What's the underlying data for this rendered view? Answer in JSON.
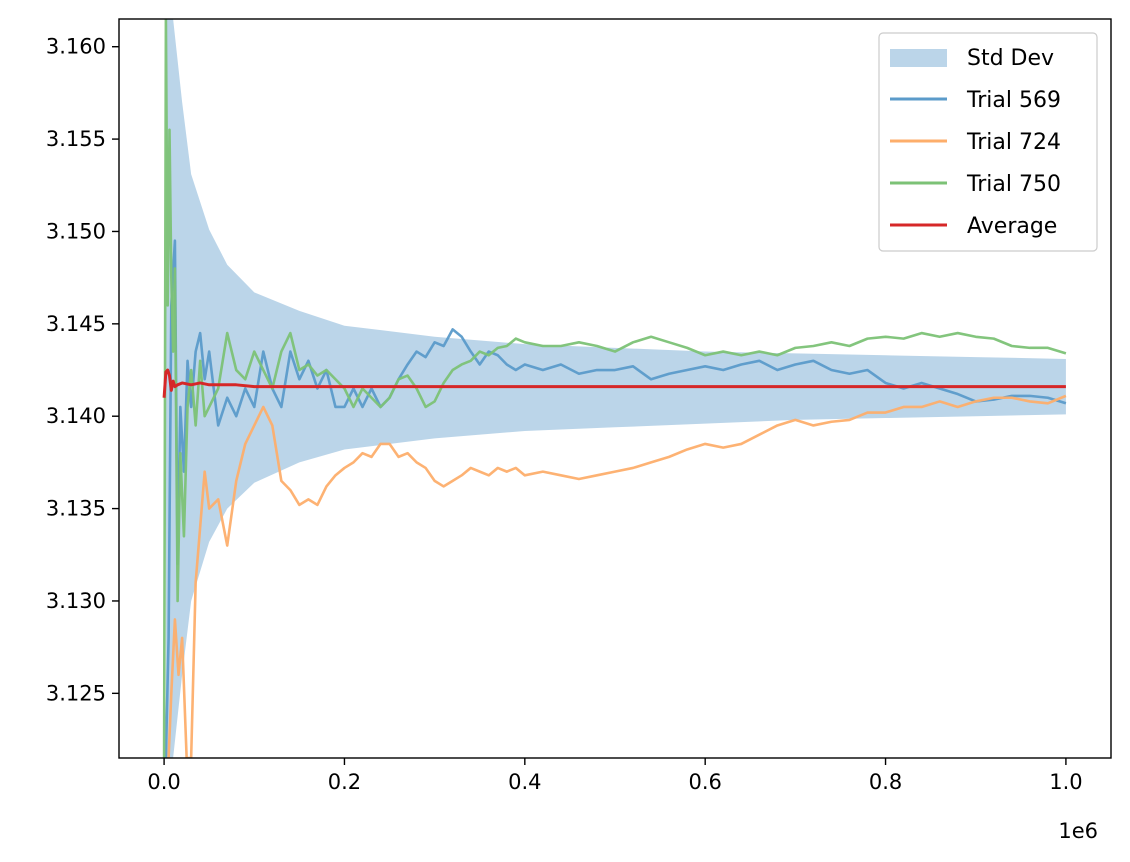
{
  "chart_data": {
    "type": "line",
    "title": "",
    "xlabel": "",
    "ylabel": "",
    "x_offset_label": "1e6",
    "xlim": [
      -0.05,
      1.05
    ],
    "ylim": [
      3.1215,
      3.1615
    ],
    "x_ticks": [
      0.0,
      0.2,
      0.4,
      0.6,
      0.8,
      1.0
    ],
    "x_tick_labels": [
      "0.0",
      "0.2",
      "0.4",
      "0.6",
      "0.8",
      "1.0"
    ],
    "y_ticks": [
      3.125,
      3.13,
      3.135,
      3.14,
      3.145,
      3.15,
      3.155,
      3.16
    ],
    "y_tick_labels": [
      "3.125",
      "3.130",
      "3.135",
      "3.140",
      "3.145",
      "3.150",
      "3.155",
      "3.160"
    ],
    "grid": false,
    "legend_position": "top-right",
    "band": {
      "name": "Std Dev",
      "color": "#aacbe4",
      "x": [
        0.002,
        0.005,
        0.01,
        0.02,
        0.03,
        0.05,
        0.07,
        0.1,
        0.15,
        0.2,
        0.3,
        0.4,
        0.5,
        0.6,
        0.7,
        0.8,
        0.9,
        1.0
      ],
      "lower": [
        3.1215,
        3.1215,
        3.1215,
        3.126,
        3.13,
        3.1332,
        3.135,
        3.1364,
        3.1375,
        3.1382,
        3.1388,
        3.1392,
        3.1394,
        3.1396,
        3.1398,
        3.1399,
        3.14,
        3.1401
      ],
      "upper": [
        3.1615,
        3.1615,
        3.1615,
        3.157,
        3.1531,
        3.1501,
        3.1482,
        3.1467,
        3.1457,
        3.1449,
        3.1443,
        3.1439,
        3.1437,
        3.1435,
        3.1434,
        3.1433,
        3.1432,
        3.1431
      ]
    },
    "series": [
      {
        "name": "Trial 569",
        "color": "#5b9bca",
        "x": [
          0.0,
          0.002,
          0.005,
          0.008,
          0.012,
          0.015,
          0.018,
          0.022,
          0.026,
          0.03,
          0.035,
          0.04,
          0.045,
          0.05,
          0.06,
          0.07,
          0.08,
          0.09,
          0.1,
          0.11,
          0.12,
          0.13,
          0.14,
          0.15,
          0.16,
          0.17,
          0.18,
          0.19,
          0.2,
          0.21,
          0.22,
          0.23,
          0.24,
          0.25,
          0.26,
          0.27,
          0.28,
          0.29,
          0.3,
          0.31,
          0.32,
          0.33,
          0.34,
          0.35,
          0.36,
          0.37,
          0.38,
          0.39,
          0.4,
          0.42,
          0.44,
          0.46,
          0.48,
          0.5,
          0.52,
          0.54,
          0.56,
          0.58,
          0.6,
          0.62,
          0.64,
          0.66,
          0.68,
          0.7,
          0.72,
          0.74,
          0.76,
          0.78,
          0.8,
          0.82,
          0.84,
          0.86,
          0.88,
          0.9,
          0.92,
          0.94,
          0.96,
          0.98,
          1.0
        ],
        "y": [
          3.1215,
          3.1215,
          3.128,
          3.146,
          3.1495,
          3.132,
          3.1405,
          3.137,
          3.143,
          3.1405,
          3.1435,
          3.1445,
          3.142,
          3.1435,
          3.1395,
          3.141,
          3.14,
          3.1415,
          3.1405,
          3.1435,
          3.1415,
          3.1405,
          3.1435,
          3.142,
          3.143,
          3.1415,
          3.1425,
          3.1405,
          3.1405,
          3.1415,
          3.1405,
          3.1415,
          3.1405,
          3.141,
          3.142,
          3.1428,
          3.1435,
          3.1432,
          3.144,
          3.1438,
          3.1447,
          3.1443,
          3.1435,
          3.1428,
          3.1435,
          3.1433,
          3.1428,
          3.1425,
          3.1428,
          3.1425,
          3.1428,
          3.1423,
          3.1425,
          3.1425,
          3.1427,
          3.142,
          3.1423,
          3.1425,
          3.1427,
          3.1425,
          3.1428,
          3.143,
          3.1425,
          3.1428,
          3.143,
          3.1425,
          3.1423,
          3.1425,
          3.1418,
          3.1415,
          3.1418,
          3.1415,
          3.1412,
          3.1408,
          3.1409,
          3.1411,
          3.1411,
          3.141,
          3.1407
        ]
      },
      {
        "name": "Trial 724",
        "color": "#fdae6b",
        "x": [
          0.005,
          0.008,
          0.012,
          0.016,
          0.02,
          0.025,
          0.03,
          0.035,
          0.04,
          0.045,
          0.05,
          0.06,
          0.07,
          0.08,
          0.09,
          0.1,
          0.11,
          0.12,
          0.13,
          0.14,
          0.15,
          0.16,
          0.17,
          0.18,
          0.19,
          0.2,
          0.21,
          0.22,
          0.23,
          0.24,
          0.25,
          0.26,
          0.27,
          0.28,
          0.29,
          0.3,
          0.31,
          0.32,
          0.33,
          0.34,
          0.35,
          0.36,
          0.37,
          0.38,
          0.39,
          0.4,
          0.42,
          0.44,
          0.46,
          0.48,
          0.5,
          0.52,
          0.54,
          0.56,
          0.58,
          0.6,
          0.62,
          0.64,
          0.66,
          0.68,
          0.7,
          0.72,
          0.74,
          0.76,
          0.78,
          0.8,
          0.82,
          0.84,
          0.86,
          0.88,
          0.9,
          0.92,
          0.94,
          0.96,
          0.98,
          1.0
        ],
        "y": [
          3.1215,
          3.125,
          3.129,
          3.126,
          3.128,
          3.1215,
          3.1215,
          3.131,
          3.134,
          3.137,
          3.135,
          3.1355,
          3.133,
          3.1365,
          3.1385,
          3.1395,
          3.1405,
          3.1395,
          3.1365,
          3.136,
          3.1352,
          3.1355,
          3.1352,
          3.1362,
          3.1368,
          3.1372,
          3.1375,
          3.138,
          3.1378,
          3.1385,
          3.1385,
          3.1378,
          3.138,
          3.1375,
          3.1372,
          3.1365,
          3.1362,
          3.1365,
          3.1368,
          3.1372,
          3.137,
          3.1368,
          3.1372,
          3.137,
          3.1372,
          3.1368,
          3.137,
          3.1368,
          3.1366,
          3.1368,
          3.137,
          3.1372,
          3.1375,
          3.1378,
          3.1382,
          3.1385,
          3.1383,
          3.1385,
          3.139,
          3.1395,
          3.1398,
          3.1395,
          3.1397,
          3.1398,
          3.1402,
          3.1402,
          3.1405,
          3.1405,
          3.1408,
          3.1405,
          3.1408,
          3.141,
          3.141,
          3.1408,
          3.1407,
          3.1411
        ]
      },
      {
        "name": "Trial 750",
        "color": "#7cc276",
        "x": [
          0.0,
          0.002,
          0.004,
          0.006,
          0.008,
          0.01,
          0.012,
          0.015,
          0.018,
          0.022,
          0.026,
          0.03,
          0.035,
          0.04,
          0.045,
          0.05,
          0.06,
          0.07,
          0.08,
          0.09,
          0.1,
          0.11,
          0.12,
          0.13,
          0.14,
          0.15,
          0.16,
          0.17,
          0.18,
          0.19,
          0.2,
          0.21,
          0.22,
          0.23,
          0.24,
          0.25,
          0.26,
          0.27,
          0.28,
          0.29,
          0.3,
          0.31,
          0.32,
          0.33,
          0.34,
          0.35,
          0.36,
          0.37,
          0.38,
          0.39,
          0.4,
          0.42,
          0.44,
          0.46,
          0.48,
          0.5,
          0.52,
          0.54,
          0.56,
          0.58,
          0.6,
          0.62,
          0.64,
          0.66,
          0.68,
          0.7,
          0.72,
          0.74,
          0.76,
          0.78,
          0.8,
          0.82,
          0.84,
          0.86,
          0.88,
          0.9,
          0.92,
          0.94,
          0.96,
          0.98,
          1.0
        ],
        "y": [
          3.1215,
          3.1615,
          3.146,
          3.1555,
          3.1475,
          3.1435,
          3.148,
          3.13,
          3.138,
          3.1335,
          3.1405,
          3.1425,
          3.1395,
          3.143,
          3.14,
          3.1405,
          3.1415,
          3.1445,
          3.1425,
          3.142,
          3.1435,
          3.1425,
          3.1415,
          3.1435,
          3.1445,
          3.1425,
          3.1428,
          3.1422,
          3.1425,
          3.142,
          3.1415,
          3.1405,
          3.1415,
          3.141,
          3.1405,
          3.141,
          3.142,
          3.1422,
          3.1415,
          3.1405,
          3.1408,
          3.1418,
          3.1425,
          3.1428,
          3.143,
          3.1435,
          3.1433,
          3.1437,
          3.1438,
          3.1442,
          3.144,
          3.1438,
          3.1438,
          3.144,
          3.1438,
          3.1435,
          3.144,
          3.1443,
          3.144,
          3.1437,
          3.1433,
          3.1435,
          3.1433,
          3.1435,
          3.1433,
          3.1437,
          3.1438,
          3.144,
          3.1438,
          3.1442,
          3.1443,
          3.1442,
          3.1445,
          3.1443,
          3.1445,
          3.1443,
          3.1442,
          3.1438,
          3.1437,
          3.1437,
          3.1434
        ]
      },
      {
        "name": "Average",
        "color": "#d62728",
        "x": [
          0.0,
          0.002,
          0.004,
          0.006,
          0.008,
          0.01,
          0.012,
          0.015,
          0.02,
          0.03,
          0.04,
          0.05,
          0.06,
          0.08,
          0.1,
          0.15,
          0.2,
          0.3,
          0.4,
          0.5,
          0.6,
          0.7,
          0.8,
          0.9,
          1.0
        ],
        "y": [
          3.141,
          3.1424,
          3.1425,
          3.1422,
          3.1414,
          3.1419,
          3.1416,
          3.1417,
          3.1418,
          3.1417,
          3.1418,
          3.1417,
          3.1417,
          3.1417,
          3.1416,
          3.1416,
          3.1416,
          3.1416,
          3.1416,
          3.1416,
          3.1416,
          3.1416,
          3.1416,
          3.1416,
          3.1416
        ]
      }
    ]
  }
}
